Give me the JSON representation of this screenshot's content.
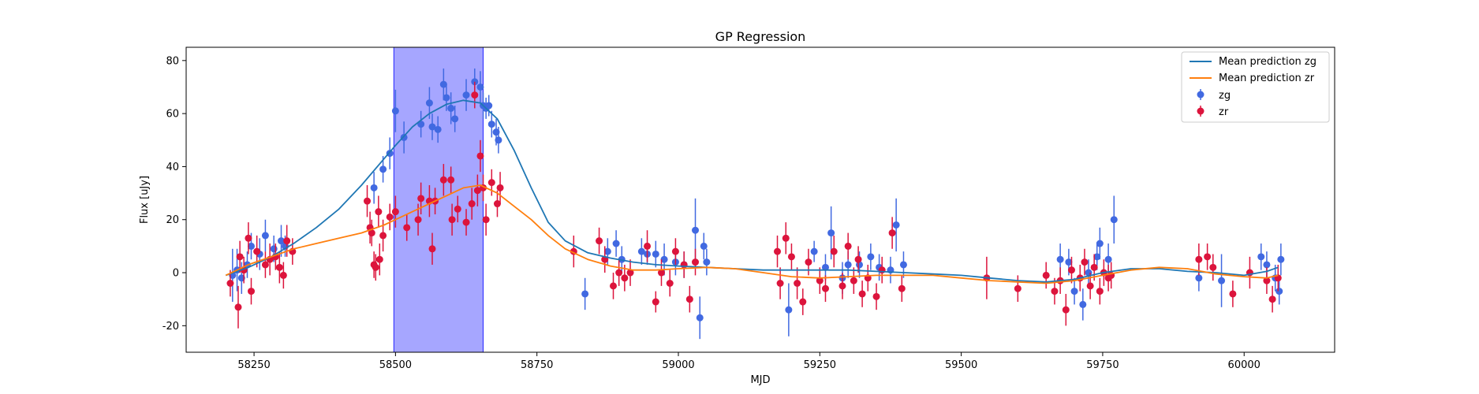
{
  "chart_data": {
    "type": "scatter",
    "title": "GP Regression",
    "xlabel": "MJD",
    "ylabel": "Flux [uJy]",
    "xlim": [
      58130,
      60160
    ],
    "ylim": [
      -30,
      85
    ],
    "xticks": [
      58250,
      58500,
      58750,
      59000,
      59250,
      59500,
      59750,
      60000
    ],
    "yticks": [
      -20,
      0,
      20,
      40,
      60,
      80
    ],
    "grid": false,
    "legend_position": "top-right",
    "shaded_region": {
      "x0": 58497,
      "x1": 58655,
      "color": "#a6a6ff"
    },
    "series": [
      {
        "name": "Mean prediction zg",
        "kind": "line",
        "color": "#1f77b4",
        "x": [
          58200,
          58240,
          58280,
          58320,
          58360,
          58400,
          58440,
          58480,
          58500,
          58530,
          58560,
          58590,
          58620,
          58650,
          58680,
          58710,
          58740,
          58770,
          58800,
          58840,
          58880,
          58920,
          58960,
          59000,
          59050,
          59100,
          59150,
          59200,
          59250,
          59300,
          59350,
          59400,
          59450,
          59500,
          59550,
          59600,
          59650,
          59700,
          59750,
          59800,
          59850,
          59900,
          59950,
          60000,
          60040,
          60060
        ],
        "y": [
          -1,
          2,
          6,
          11,
          17,
          24,
          33,
          43,
          48,
          55,
          60,
          63.5,
          65,
          64,
          58,
          46,
          32,
          19,
          12,
          7.5,
          5.5,
          4,
          3,
          2.5,
          2,
          1.5,
          1,
          1,
          1,
          1,
          0.5,
          0,
          -0.5,
          -1,
          -2,
          -3,
          -3.5,
          -2.5,
          0,
          1.5,
          1.5,
          0.5,
          0,
          -1,
          0.5,
          2
        ]
      },
      {
        "name": "Mean prediction zr",
        "kind": "line",
        "color": "#ff7f0e",
        "x": [
          58200,
          58240,
          58280,
          58320,
          58360,
          58400,
          58440,
          58480,
          58500,
          58530,
          58560,
          58590,
          58620,
          58650,
          58680,
          58710,
          58740,
          58770,
          58800,
          58840,
          58880,
          58920,
          58960,
          59000,
          59050,
          59100,
          59150,
          59200,
          59250,
          59300,
          59350,
          59400,
          59450,
          59500,
          59550,
          59600,
          59650,
          59700,
          59750,
          59800,
          59850,
          59900,
          59950,
          60000,
          60040,
          60060
        ],
        "y": [
          -1,
          3,
          6,
          9,
          11,
          13,
          15,
          18,
          20,
          23,
          26,
          29,
          32,
          33,
          30,
          25,
          20,
          14,
          9,
          5,
          2.5,
          1,
          1,
          1.5,
          2,
          1.5,
          0,
          -1.5,
          -2,
          -1.5,
          -1,
          -1,
          -1,
          -2,
          -3,
          -3.5,
          -4,
          -3,
          -1,
          1,
          2,
          1.5,
          -0.5,
          -1.5,
          -2,
          -1
        ]
      },
      {
        "name": "zg",
        "kind": "errorbar",
        "color": "#4169e1",
        "points": [
          [
            58212,
            -1,
            10
          ],
          [
            58220,
            1,
            8
          ],
          [
            58228,
            -2,
            6
          ],
          [
            58238,
            3,
            5
          ],
          [
            58245,
            10,
            5
          ],
          [
            58260,
            7,
            6
          ],
          [
            58270,
            14,
            6
          ],
          [
            58285,
            9,
            5
          ],
          [
            58298,
            12,
            6
          ],
          [
            58305,
            10,
            4
          ],
          [
            58462,
            32,
            6
          ],
          [
            58478,
            39,
            5
          ],
          [
            58490,
            45,
            6
          ],
          [
            58500,
            61,
            8
          ],
          [
            58515,
            51,
            6
          ],
          [
            58545,
            56,
            5
          ],
          [
            58560,
            64,
            6
          ],
          [
            58565,
            55,
            5
          ],
          [
            58575,
            54,
            5
          ],
          [
            58585,
            71,
            6
          ],
          [
            58590,
            66,
            5
          ],
          [
            58598,
            62,
            6
          ],
          [
            58605,
            58,
            5
          ],
          [
            58625,
            67,
            6
          ],
          [
            58640,
            72,
            5
          ],
          [
            58650,
            70,
            6
          ],
          [
            58655,
            63,
            5
          ],
          [
            58660,
            62,
            4
          ],
          [
            58665,
            63,
            4
          ],
          [
            58670,
            56,
            5
          ],
          [
            58678,
            53,
            5
          ],
          [
            58682,
            50,
            5
          ],
          [
            58835,
            -8,
            6
          ],
          [
            58875,
            8,
            5
          ],
          [
            58890,
            11,
            5
          ],
          [
            58900,
            5,
            5
          ],
          [
            58935,
            8,
            5
          ],
          [
            58945,
            7,
            4
          ],
          [
            58960,
            7,
            5
          ],
          [
            58975,
            5,
            6
          ],
          [
            58995,
            4,
            5
          ],
          [
            59010,
            3,
            5
          ],
          [
            59030,
            16,
            12
          ],
          [
            59038,
            -17,
            8
          ],
          [
            59045,
            10,
            5
          ],
          [
            59050,
            4,
            5
          ],
          [
            59195,
            -14,
            10
          ],
          [
            59240,
            8,
            4
          ],
          [
            59260,
            2,
            5
          ],
          [
            59270,
            15,
            10
          ],
          [
            59290,
            -2,
            6
          ],
          [
            59300,
            3,
            5
          ],
          [
            59320,
            3,
            5
          ],
          [
            59340,
            6,
            5
          ],
          [
            59355,
            2,
            5
          ],
          [
            59375,
            1,
            5
          ],
          [
            59385,
            18,
            10
          ],
          [
            59398,
            3,
            5
          ],
          [
            59675,
            5,
            6
          ],
          [
            59690,
            4,
            5
          ],
          [
            59700,
            -7,
            5
          ],
          [
            59715,
            -12,
            6
          ],
          [
            59725,
            0,
            5
          ],
          [
            59740,
            6,
            5
          ],
          [
            59745,
            11,
            6
          ],
          [
            59760,
            5,
            6
          ],
          [
            59770,
            20,
            9
          ],
          [
            59920,
            -2,
            5
          ],
          [
            59960,
            -3,
            10
          ],
          [
            60030,
            6,
            5
          ],
          [
            60040,
            3,
            5
          ],
          [
            60055,
            -2,
            5
          ],
          [
            60062,
            -7,
            5
          ],
          [
            60065,
            5,
            6
          ]
        ]
      },
      {
        "name": "zr",
        "kind": "errorbar",
        "color": "#dc143c",
        "points": [
          [
            58208,
            -4,
            5
          ],
          [
            58222,
            -13,
            8
          ],
          [
            58225,
            6,
            6
          ],
          [
            58232,
            1,
            5
          ],
          [
            58240,
            13,
            6
          ],
          [
            58245,
            -7,
            5
          ],
          [
            58255,
            8,
            6
          ],
          [
            58270,
            3,
            5
          ],
          [
            58278,
            5,
            6
          ],
          [
            58288,
            6,
            5
          ],
          [
            58295,
            2,
            6
          ],
          [
            58302,
            -1,
            5
          ],
          [
            58308,
            12,
            6
          ],
          [
            58318,
            8,
            5
          ],
          [
            58450,
            27,
            6
          ],
          [
            58455,
            17,
            6
          ],
          [
            58458,
            15,
            5
          ],
          [
            58462,
            3,
            5
          ],
          [
            58465,
            2,
            5
          ],
          [
            58470,
            23,
            6
          ],
          [
            58472,
            5,
            6
          ],
          [
            58478,
            14,
            6
          ],
          [
            58490,
            21,
            5
          ],
          [
            58500,
            23,
            6
          ],
          [
            58520,
            17,
            5
          ],
          [
            58540,
            20,
            6
          ],
          [
            58545,
            28,
            6
          ],
          [
            58560,
            27,
            6
          ],
          [
            58565,
            9,
            6
          ],
          [
            58570,
            27,
            5
          ],
          [
            58585,
            35,
            6
          ],
          [
            58598,
            35,
            5
          ],
          [
            58600,
            20,
            6
          ],
          [
            58610,
            24,
            5
          ],
          [
            58625,
            19,
            5
          ],
          [
            58635,
            26,
            6
          ],
          [
            58640,
            67,
            5
          ],
          [
            58645,
            31,
            6
          ],
          [
            58650,
            44,
            6
          ],
          [
            58655,
            32,
            5
          ],
          [
            58660,
            20,
            6
          ],
          [
            58670,
            34,
            5
          ],
          [
            58680,
            26,
            5
          ],
          [
            58685,
            32,
            6
          ],
          [
            58815,
            8,
            6
          ],
          [
            58860,
            12,
            5
          ],
          [
            58870,
            5,
            5
          ],
          [
            58885,
            -5,
            5
          ],
          [
            58895,
            0,
            5
          ],
          [
            58905,
            -2,
            5
          ],
          [
            58915,
            0,
            5
          ],
          [
            58945,
            10,
            6
          ],
          [
            58960,
            -11,
            4
          ],
          [
            58970,
            0,
            5
          ],
          [
            58985,
            -4,
            5
          ],
          [
            58995,
            8,
            5
          ],
          [
            59010,
            3,
            5
          ],
          [
            59020,
            -10,
            5
          ],
          [
            59030,
            4,
            5
          ],
          [
            59175,
            8,
            6
          ],
          [
            59180,
            -4,
            6
          ],
          [
            59190,
            13,
            6
          ],
          [
            59200,
            6,
            5
          ],
          [
            59210,
            -4,
            6
          ],
          [
            59220,
            -11,
            5
          ],
          [
            59230,
            4,
            5
          ],
          [
            59250,
            -3,
            5
          ],
          [
            59260,
            -6,
            5
          ],
          [
            59275,
            8,
            6
          ],
          [
            59290,
            -5,
            5
          ],
          [
            59300,
            10,
            5
          ],
          [
            59310,
            -3,
            5
          ],
          [
            59318,
            5,
            5
          ],
          [
            59325,
            -8,
            5
          ],
          [
            59335,
            -2,
            5
          ],
          [
            59350,
            -9,
            5
          ],
          [
            59360,
            1,
            5
          ],
          [
            59378,
            15,
            6
          ],
          [
            59395,
            -6,
            5
          ],
          [
            59545,
            -2,
            8
          ],
          [
            59600,
            -6,
            5
          ],
          [
            59650,
            -1,
            5
          ],
          [
            59665,
            -7,
            5
          ],
          [
            59675,
            -3,
            5
          ],
          [
            59685,
            -14,
            6
          ],
          [
            59695,
            1,
            5
          ],
          [
            59710,
            -2,
            5
          ],
          [
            59718,
            4,
            5
          ],
          [
            59728,
            -5,
            5
          ],
          [
            59735,
            2,
            5
          ],
          [
            59745,
            -7,
            5
          ],
          [
            59752,
            0,
            5
          ],
          [
            59760,
            -2,
            5
          ],
          [
            59765,
            -1,
            5
          ],
          [
            59920,
            5,
            6
          ],
          [
            59935,
            6,
            5
          ],
          [
            59945,
            2,
            5
          ],
          [
            59980,
            -8,
            5
          ],
          [
            60010,
            0,
            6
          ],
          [
            60040,
            -3,
            5
          ],
          [
            60050,
            -10,
            5
          ],
          [
            60060,
            -2,
            5
          ]
        ]
      }
    ]
  }
}
